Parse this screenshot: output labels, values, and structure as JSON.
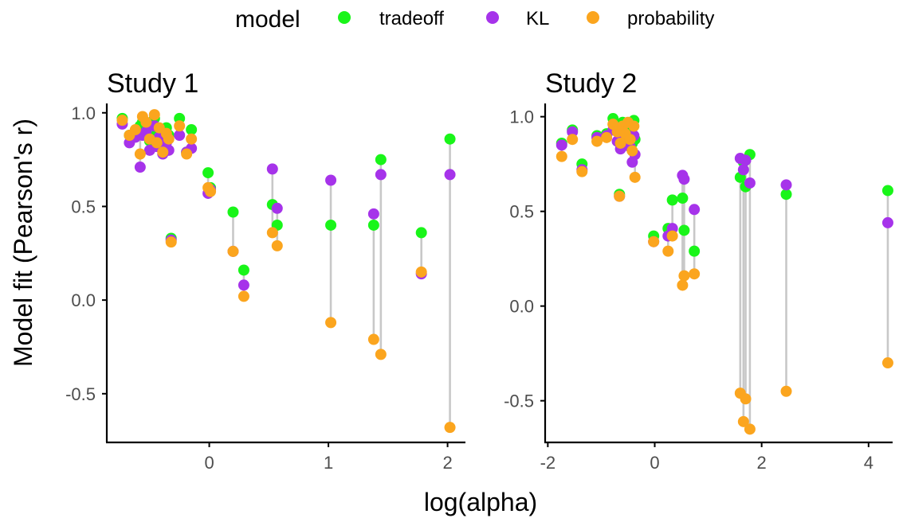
{
  "legend": {
    "title": "model",
    "entries": [
      {
        "name": "tradeoff",
        "color": "#19f519"
      },
      {
        "name": "KL",
        "color": "#a633ea"
      },
      {
        "name": "probability",
        "color": "#fba51e"
      }
    ]
  },
  "x_label": "log(alpha)",
  "y_label": "Model fit (Pearson's r)",
  "chart_data": [
    {
      "type": "scatter",
      "title": "Study 1",
      "xlabel": "log(alpha)",
      "ylabel": "Model fit (Pearson's r)",
      "xlim": [
        -0.86,
        2.15
      ],
      "ylim": [
        -0.76,
        1.05
      ],
      "xticks": [
        0,
        1,
        2
      ],
      "yticks": [
        -0.5,
        0.0,
        0.5,
        1.0
      ],
      "ytick_labels": [
        "-0.5",
        "0.0",
        "0.5",
        "1.0"
      ],
      "xtick_labels": [
        "0",
        "1",
        "2"
      ],
      "legend": "top",
      "grid": false,
      "series_order": [
        "tradeoff",
        "KL",
        "probability"
      ],
      "points": [
        {
          "x": -0.73,
          "tradeoff": 0.97,
          "KL": 0.94,
          "probability": 0.96
        },
        {
          "x": -0.67,
          "tradeoff": 0.88,
          "KL": 0.84,
          "probability": 0.88
        },
        {
          "x": -0.62,
          "tradeoff": 0.9,
          "KL": 0.87,
          "probability": 0.91
        },
        {
          "x": -0.58,
          "tradeoff": 0.93,
          "KL": 0.71,
          "probability": 0.78
        },
        {
          "x": -0.56,
          "tradeoff": 0.95,
          "KL": 0.88,
          "probability": 0.98
        },
        {
          "x": -0.53,
          "tradeoff": 0.92,
          "KL": 0.9,
          "probability": 0.95
        },
        {
          "x": -0.5,
          "tradeoff": 0.85,
          "KL": 0.8,
          "probability": 0.86
        },
        {
          "x": -0.46,
          "tradeoff": 0.97,
          "KL": 0.93,
          "probability": 0.99
        },
        {
          "x": -0.44,
          "tradeoff": 0.89,
          "KL": 0.82,
          "probability": 0.84
        },
        {
          "x": -0.42,
          "tradeoff": 0.84,
          "KL": 0.87,
          "probability": 0.92
        },
        {
          "x": -0.39,
          "tradeoff": 0.83,
          "KL": 0.78,
          "probability": 0.79
        },
        {
          "x": -0.36,
          "tradeoff": 0.92,
          "KL": 0.84,
          "probability": 0.89
        },
        {
          "x": -0.34,
          "tradeoff": 0.88,
          "KL": 0.8,
          "probability": 0.86
        },
        {
          "x": -0.32,
          "tradeoff": 0.33,
          "KL": 0.32,
          "probability": 0.31
        },
        {
          "x": -0.25,
          "tradeoff": 0.97,
          "KL": 0.88,
          "probability": 0.93
        },
        {
          "x": -0.19,
          "tradeoff": 0.79,
          "KL": 0.79,
          "probability": 0.78
        },
        {
          "x": -0.15,
          "tradeoff": 0.91,
          "KL": 0.81,
          "probability": 0.86
        },
        {
          "x": -0.01,
          "tradeoff": 0.68,
          "KL": 0.57,
          "probability": 0.6
        },
        {
          "x": 0.01,
          "tradeoff": 0.6,
          "KL": 0.59,
          "probability": 0.58
        },
        {
          "x": 0.2,
          "tradeoff": 0.47,
          "KL": 0.26,
          "probability": 0.26
        },
        {
          "x": 0.29,
          "tradeoff": 0.16,
          "KL": 0.08,
          "probability": 0.02
        },
        {
          "x": 0.53,
          "tradeoff": 0.51,
          "KL": 0.7,
          "probability": 0.36
        },
        {
          "x": 0.57,
          "tradeoff": 0.4,
          "KL": 0.49,
          "probability": 0.29
        },
        {
          "x": 1.02,
          "tradeoff": 0.4,
          "KL": 0.64,
          "probability": -0.12
        },
        {
          "x": 1.38,
          "tradeoff": 0.4,
          "KL": 0.46,
          "probability": -0.21
        },
        {
          "x": 1.44,
          "tradeoff": 0.75,
          "KL": 0.67,
          "probability": -0.29
        },
        {
          "x": 1.78,
          "tradeoff": 0.36,
          "KL": 0.14,
          "probability": 0.15
        },
        {
          "x": 2.02,
          "tradeoff": 0.86,
          "KL": 0.67,
          "probability": -0.68
        }
      ]
    },
    {
      "type": "scatter",
      "title": "Study 2",
      "xlabel": "log(alpha)",
      "ylabel": "Model fit (Pearson's r)",
      "xlim": [
        -2.05,
        4.45
      ],
      "ylim": [
        -0.72,
        1.07
      ],
      "xticks": [
        -2,
        0,
        2,
        4
      ],
      "yticks": [
        -0.5,
        0.0,
        0.5,
        1.0
      ],
      "ytick_labels": [
        "-0.5",
        "0.0",
        "0.5",
        "1.0"
      ],
      "xtick_labels": [
        "-2",
        "0",
        "2",
        "4"
      ],
      "legend": "top",
      "grid": false,
      "series_order": [
        "tradeoff",
        "KL",
        "probability"
      ],
      "points": [
        {
          "x": -1.74,
          "tradeoff": 0.86,
          "KL": 0.85,
          "probability": 0.79
        },
        {
          "x": -1.54,
          "tradeoff": 0.93,
          "KL": 0.92,
          "probability": 0.88
        },
        {
          "x": -1.36,
          "tradeoff": 0.75,
          "KL": 0.72,
          "probability": 0.71
        },
        {
          "x": -1.08,
          "tradeoff": 0.9,
          "KL": 0.89,
          "probability": 0.87
        },
        {
          "x": -0.9,
          "tradeoff": 0.91,
          "KL": 0.9,
          "probability": 0.89
        },
        {
          "x": -0.78,
          "tradeoff": 0.99,
          "KL": 0.93,
          "probability": 0.96
        },
        {
          "x": -0.7,
          "tradeoff": 0.94,
          "KL": 0.87,
          "probability": 0.92
        },
        {
          "x": -0.66,
          "tradeoff": 0.59,
          "KL": 0.58,
          "probability": 0.58
        },
        {
          "x": -0.64,
          "tradeoff": 0.87,
          "KL": 0.83,
          "probability": 0.86
        },
        {
          "x": -0.6,
          "tradeoff": 0.97,
          "KL": 0.92,
          "probability": 0.95
        },
        {
          "x": -0.55,
          "tradeoff": 0.93,
          "KL": 0.85,
          "probability": 0.91
        },
        {
          "x": -0.5,
          "tradeoff": 0.95,
          "KL": 0.87,
          "probability": 0.97
        },
        {
          "x": -0.46,
          "tradeoff": 0.9,
          "KL": 0.84,
          "probability": 0.88
        },
        {
          "x": -0.42,
          "tradeoff": 0.86,
          "KL": 0.76,
          "probability": 0.82
        },
        {
          "x": -0.39,
          "tradeoff": 0.98,
          "KL": 0.9,
          "probability": 0.95
        },
        {
          "x": -0.37,
          "tradeoff": 0.88,
          "KL": 0.8,
          "probability": 0.68
        },
        {
          "x": -0.02,
          "tradeoff": 0.37,
          "KL": 0.34,
          "probability": 0.34
        },
        {
          "x": 0.25,
          "tradeoff": 0.41,
          "KL": 0.37,
          "probability": 0.29
        },
        {
          "x": 0.33,
          "tradeoff": 0.56,
          "KL": 0.41,
          "probability": 0.37
        },
        {
          "x": 0.52,
          "tradeoff": 0.57,
          "KL": 0.69,
          "probability": 0.11
        },
        {
          "x": 0.55,
          "tradeoff": 0.4,
          "KL": 0.67,
          "probability": 0.16
        },
        {
          "x": 0.74,
          "tradeoff": 0.29,
          "KL": 0.51,
          "probability": 0.17
        },
        {
          "x": 1.6,
          "tradeoff": 0.68,
          "KL": 0.78,
          "probability": -0.46
        },
        {
          "x": 1.66,
          "tradeoff": 0.76,
          "KL": 0.72,
          "probability": -0.61
        },
        {
          "x": 1.7,
          "tradeoff": 0.63,
          "KL": 0.77,
          "probability": -0.49
        },
        {
          "x": 1.78,
          "tradeoff": 0.8,
          "KL": 0.65,
          "probability": -0.65
        },
        {
          "x": 2.46,
          "tradeoff": 0.59,
          "KL": 0.64,
          "probability": -0.45
        },
        {
          "x": 4.36,
          "tradeoff": 0.61,
          "KL": 0.44,
          "probability": -0.3
        }
      ]
    }
  ]
}
